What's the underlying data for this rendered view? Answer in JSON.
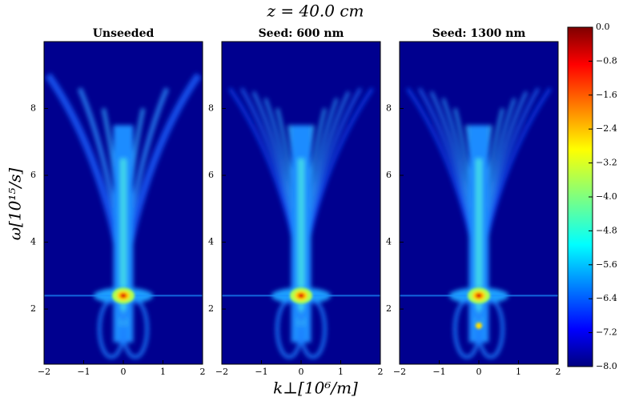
{
  "title": "z = 40.0 cm",
  "xlabel": "k⊥[10⁶/m]",
  "ylabel": "ω[10¹⁵/s]",
  "chart_data": [
    {
      "type": "heatmap",
      "title": "Unseeded",
      "colormap": "jet",
      "xlim": [
        -2,
        2
      ],
      "xticks": [
        {
          "value": -2,
          "label": "−2"
        },
        {
          "value": -1,
          "label": "−1"
        },
        0,
        1,
        2
      ],
      "ylim": [
        0.35,
        10.0
      ],
      "yticks": [
        2,
        4,
        6,
        8
      ]
    },
    {
      "type": "heatmap",
      "title": "Seed: 600 nm",
      "colormap": "jet",
      "xlim": [
        -2,
        2
      ],
      "xticks": [
        {
          "value": -2,
          "label": "−2"
        },
        {
          "value": -1,
          "label": "−1"
        },
        0,
        1,
        2
      ],
      "ylim": [
        0.35,
        10.0
      ],
      "yticks": [
        2,
        4,
        6,
        8
      ]
    },
    {
      "type": "heatmap",
      "title": "Seed: 1300 nm",
      "colormap": "jet",
      "xlim": [
        -2,
        2
      ],
      "xticks": [
        {
          "value": -2,
          "label": "−2"
        },
        {
          "value": -1,
          "label": "−1"
        },
        0,
        1,
        2
      ],
      "ylim": [
        0.35,
        10.0
      ],
      "yticks": [
        2,
        4,
        6,
        8
      ]
    },
    {
      "type": "colorbar",
      "colormap": "jet",
      "ylim": [
        -8,
        0
      ],
      "yticks": [
        {
          "value": 0,
          "label": "0.0"
        },
        {
          "value": -0.8,
          "label": "−0.8"
        },
        {
          "value": -1.6,
          "label": "−1.6"
        },
        {
          "value": -2.4,
          "label": "−2.4"
        },
        {
          "value": -3.2,
          "label": "−3.2"
        },
        {
          "value": -4,
          "label": "−4.0"
        },
        {
          "value": -4.8,
          "label": "−4.8"
        },
        {
          "value": -5.6,
          "label": "−5.6"
        },
        {
          "value": -6.4,
          "label": "−6.4"
        },
        {
          "value": -7.2,
          "label": "−7.2"
        },
        {
          "value": -8,
          "label": "−8.0"
        }
      ]
    }
  ]
}
